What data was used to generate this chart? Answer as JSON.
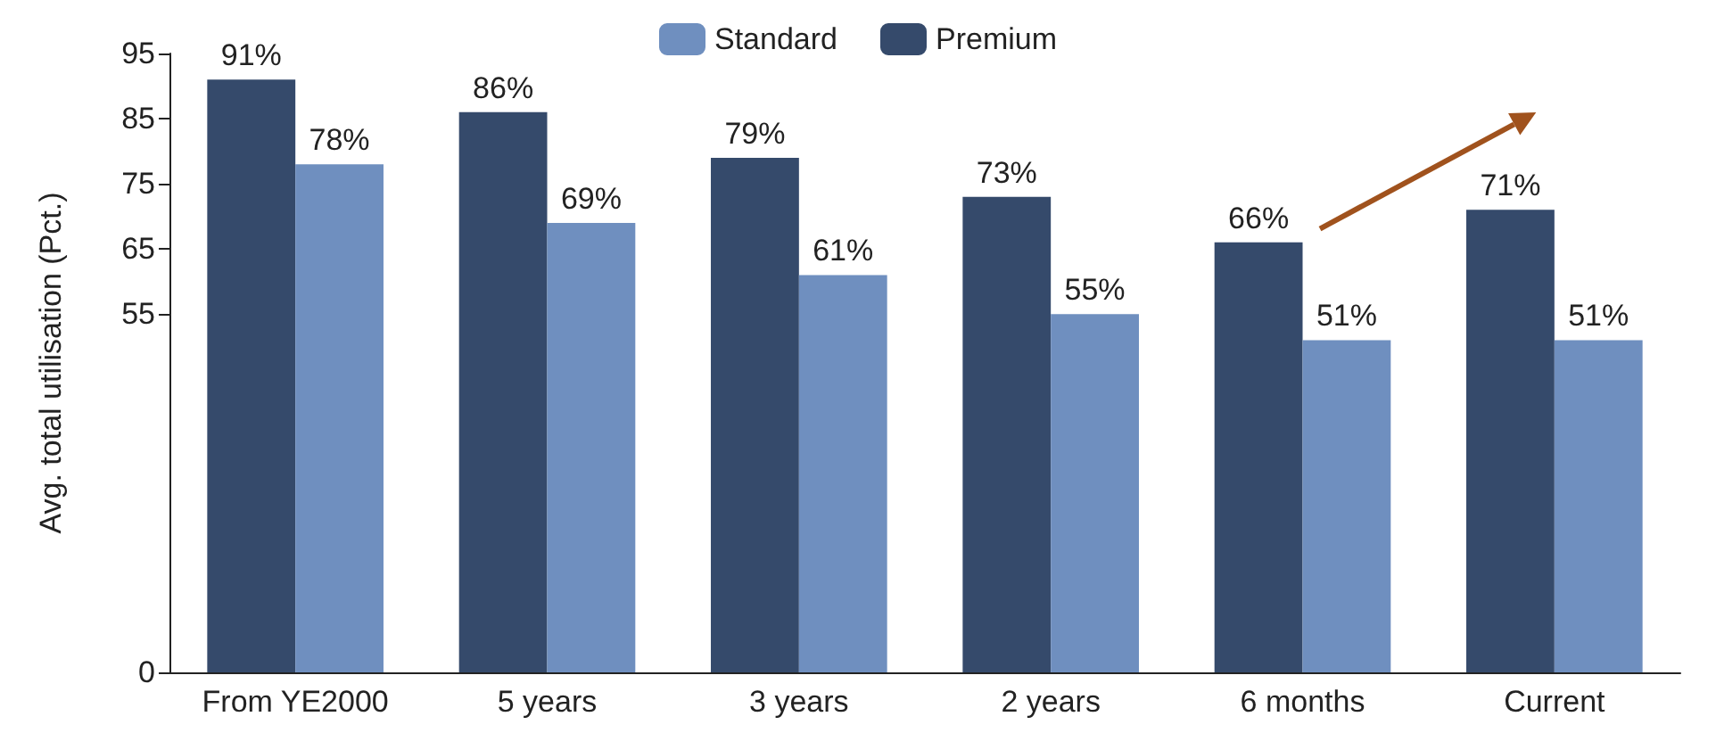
{
  "chart_data": {
    "type": "bar",
    "ylabel": "Avg. total utilisation (Pct.)",
    "categories": [
      "From YE2000",
      "5 years",
      "3 years",
      "2 years",
      "6 months",
      "Current"
    ],
    "series": [
      {
        "name": "Premium",
        "color": "#354a6b",
        "values": [
          91,
          86,
          79,
          73,
          66,
          71
        ],
        "value_labels": [
          "91%",
          "86%",
          "79%",
          "73%",
          "66%",
          "71%"
        ]
      },
      {
        "name": "Standard",
        "color": "#6f8fbf",
        "values": [
          78,
          69,
          61,
          55,
          51,
          51
        ],
        "value_labels": [
          "78%",
          "69%",
          "61%",
          "55%",
          "51%",
          "51%"
        ]
      }
    ],
    "ylim": [
      0,
      95
    ],
    "yticks": [
      0,
      55,
      65,
      75,
      85,
      95
    ],
    "grid": false,
    "legend": "top"
  }
}
